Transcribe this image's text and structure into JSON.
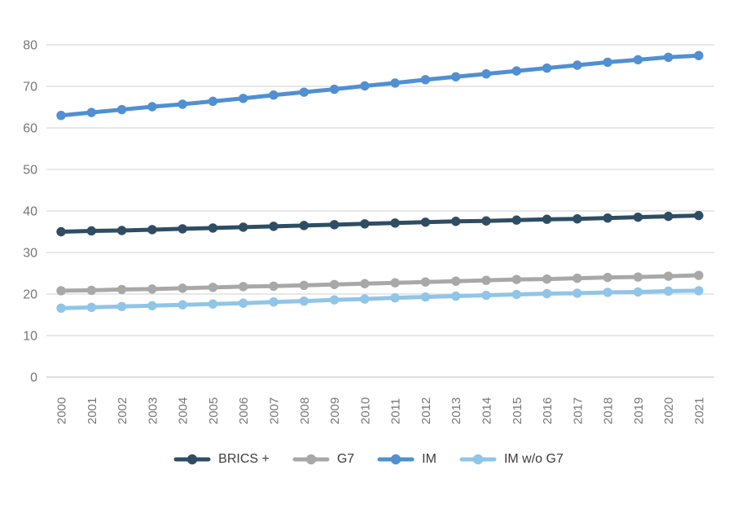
{
  "chart_data": {
    "type": "line",
    "title": "",
    "xlabel": "",
    "ylabel": "",
    "x": [
      2000,
      2001,
      2002,
      2003,
      2004,
      2005,
      2006,
      2007,
      2008,
      2009,
      2010,
      2011,
      2012,
      2013,
      2014,
      2015,
      2016,
      2017,
      2018,
      2019,
      2020,
      2021
    ],
    "yticks": [
      0,
      10,
      20,
      30,
      40,
      50,
      60,
      70,
      80
    ],
    "ylim": [
      0,
      80
    ],
    "grid": "horizontal",
    "legend_position": "bottom-center",
    "series": [
      {
        "name": "BRICS +",
        "color": "#2e4d63",
        "values": [
          35.0,
          35.2,
          35.3,
          35.5,
          35.7,
          35.9,
          36.1,
          36.3,
          36.5,
          36.7,
          36.9,
          37.1,
          37.3,
          37.5,
          37.6,
          37.8,
          38.0,
          38.1,
          38.3,
          38.5,
          38.7,
          38.9
        ]
      },
      {
        "name": "G7",
        "color": "#a8a8a8",
        "values": [
          20.8,
          20.9,
          21.1,
          21.2,
          21.4,
          21.6,
          21.8,
          21.9,
          22.1,
          22.3,
          22.5,
          22.7,
          22.9,
          23.1,
          23.3,
          23.5,
          23.6,
          23.8,
          24.0,
          24.1,
          24.3,
          24.5
        ]
      },
      {
        "name": "IM",
        "color": "#508fd2",
        "values": [
          63.0,
          63.7,
          64.4,
          65.1,
          65.7,
          66.4,
          67.1,
          67.9,
          68.6,
          69.3,
          70.1,
          70.8,
          71.6,
          72.3,
          73.0,
          73.7,
          74.4,
          75.1,
          75.8,
          76.4,
          77.0,
          77.4
        ]
      },
      {
        "name": "IM w/o G7",
        "color": "#90c5e8",
        "values": [
          16.6,
          16.8,
          17.0,
          17.2,
          17.4,
          17.6,
          17.8,
          18.1,
          18.3,
          18.6,
          18.8,
          19.1,
          19.3,
          19.5,
          19.7,
          19.9,
          20.1,
          20.2,
          20.4,
          20.5,
          20.7,
          20.8
        ]
      }
    ],
    "colors": {
      "gridline": "#d2d2d2",
      "zero_line": "#bdbdbd",
      "tick_label": "#767676",
      "legend_label": "#3c3c3c",
      "background": "#ffffff"
    }
  }
}
